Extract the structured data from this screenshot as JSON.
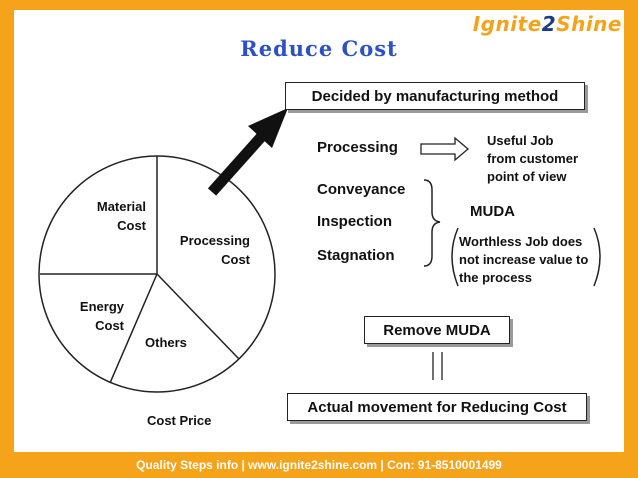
{
  "logo": {
    "part1": "Ignite",
    "part2": "2",
    "part3": "Shine"
  },
  "title": "Reduce Cost",
  "pie": {
    "segments": [
      {
        "label_line1": "Material",
        "label_line2": "Cost"
      },
      {
        "label_line1": "Processing",
        "label_line2": "Cost"
      },
      {
        "label_line1": "Others",
        "label_line2": ""
      },
      {
        "label_line1": "Energy",
        "label_line2": "Cost"
      }
    ],
    "caption": "Cost Price"
  },
  "boxes": {
    "top": "Decided by manufacturing method",
    "remove": "Remove MUDA",
    "bottom": "Actual movement for Reducing Cost"
  },
  "items": {
    "processing": "Processing",
    "conveyance": "Conveyance",
    "inspection": "Inspection",
    "stagnation": "Stagnation"
  },
  "useful": {
    "line1": "Useful Job",
    "line2": "from customer",
    "line3": "point of view"
  },
  "muda": "MUDA",
  "worthless": {
    "line1": "Worthless Job does",
    "line2": "not increase value to",
    "line3": "the process"
  },
  "footer": "Quality Steps info | www.ignite2shine.com | Con: 91-8510001499",
  "colors": {
    "frame": "#f5a31a",
    "title": "#2b50c8",
    "logo_blue": "#1c3a8a"
  }
}
